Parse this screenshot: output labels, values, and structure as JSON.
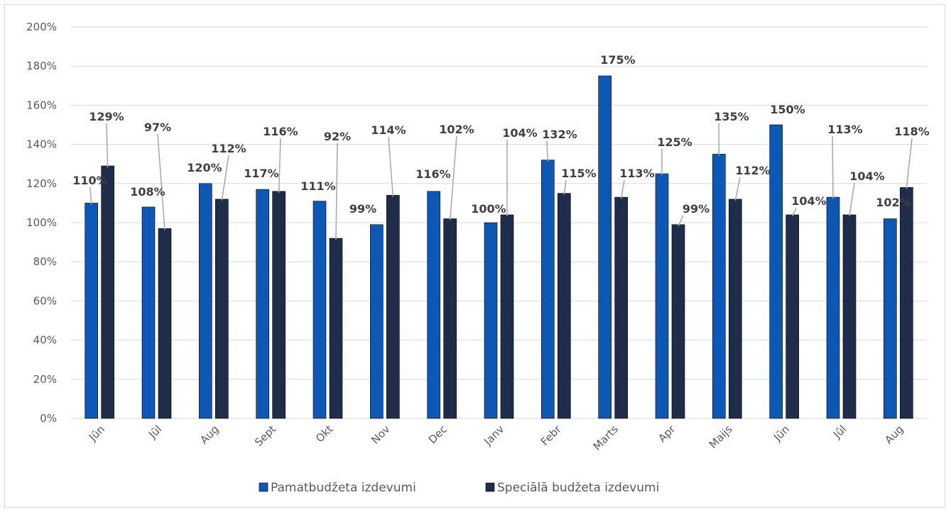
{
  "chart_data": {
    "type": "bar",
    "categories": [
      "Jūn",
      "Jūl",
      "Aug",
      "Sept",
      "Okt",
      "Nov",
      "Dec",
      "Janv",
      "Febr",
      "Marts",
      "Apr",
      "Maijs",
      "Jūn",
      "Jūl",
      "Aug"
    ],
    "series": [
      {
        "name": "Pamatbudžeta izdevumi",
        "color": "#0d57b5",
        "values": [
          110,
          108,
          120,
          117,
          111,
          99,
          116,
          100,
          132,
          175,
          125,
          135,
          150,
          113,
          102
        ],
        "labels": [
          "110%",
          "108%",
          "120%",
          "117%",
          "111%",
          "99%",
          "116%",
          "100%",
          "132%",
          "175%",
          "125%",
          "135%",
          "150%",
          "113%",
          "102%"
        ]
      },
      {
        "name": "Speciālā budžeta izdevumi",
        "color": "#1f2d4a",
        "values": [
          129,
          97,
          112,
          116,
          92,
          114,
          102,
          104,
          115,
          113,
          99,
          112,
          104,
          104,
          118
        ],
        "labels": [
          "129%",
          "97%",
          "112%",
          "116%",
          "92%",
          "114%",
          "102%",
          "104%",
          "115%",
          "113%",
          "99%",
          "112%",
          "104%",
          "104%",
          "118%"
        ]
      }
    ],
    "y_ticks": [
      "0%",
      "20%",
      "40%",
      "60%",
      "80%",
      "100%",
      "120%",
      "140%",
      "160%",
      "180%",
      "200%"
    ],
    "ylim": [
      0,
      200
    ],
    "grid": true,
    "legend_position": "bottom",
    "title": "",
    "xlabel": "",
    "ylabel": ""
  }
}
